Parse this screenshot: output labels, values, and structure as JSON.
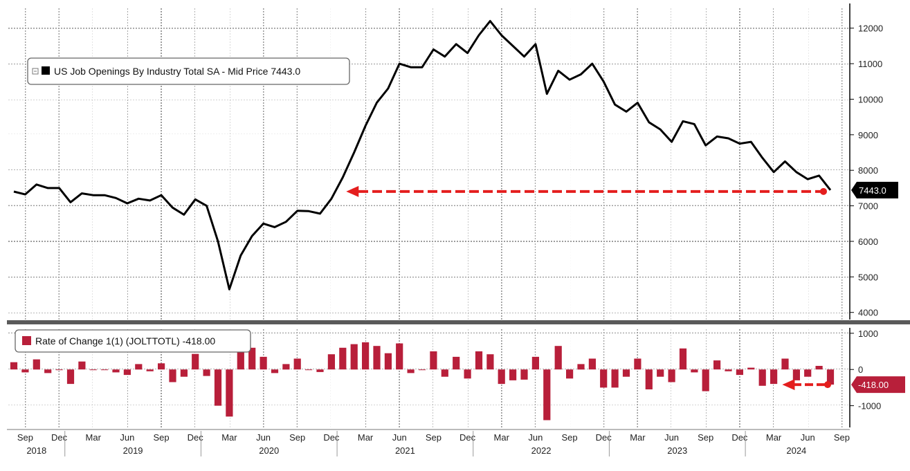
{
  "chart_data": [
    {
      "type": "line",
      "legend_label": "US Job Openings By Industry Total SA - Mid Price 7443.0",
      "series_color": "#000000",
      "last_value_label": "7443.0",
      "ylim": [
        3800,
        12500
      ],
      "yticks": [
        4000,
        5000,
        6000,
        7000,
        8000,
        9000,
        10000,
        11000,
        12000
      ],
      "annotation": "dashed red arrow from latest value back to Jan 2021 level",
      "annotation_color": "#e41e1e",
      "start": "2018-08",
      "values": [
        7400,
        7320,
        7600,
        7500,
        7500,
        7100,
        7350,
        7300,
        7300,
        7220,
        7070,
        7200,
        7150,
        7300,
        6950,
        6750,
        7180,
        7000,
        6000,
        4650,
        5600,
        6150,
        6500,
        6400,
        6550,
        6860,
        6850,
        6780,
        7200,
        7800,
        8500,
        9250,
        9900,
        10300,
        11000,
        10900,
        10900,
        11400,
        11200,
        11550,
        11300,
        11800,
        12200,
        11800,
        11500,
        11200,
        11550,
        10150,
        10800,
        10550,
        10700,
        11000,
        10500,
        9850,
        9650,
        9900,
        9350,
        9150,
        8800,
        9380,
        9300,
        8700,
        8950,
        8900,
        8750,
        8800,
        8350,
        7950,
        8250,
        7950,
        7750,
        7850,
        7443
      ]
    },
    {
      "type": "bar",
      "legend_label": "Rate of Change 1(1) (JOLTTOTL) -418.00",
      "series_color": "#b81f3a",
      "last_value_label": "-418.00",
      "ylim": [
        -1600,
        1150
      ],
      "yticks": [
        -1000,
        0,
        1000
      ],
      "annotation_color": "#e41e1e",
      "start": "2018-08",
      "values": [
        200,
        -80,
        280,
        -100,
        0,
        -400,
        220,
        -20,
        0,
        -80,
        -150,
        150,
        -50,
        170,
        -350,
        -200,
        430,
        -180,
        -1000,
        -1300,
        950,
        600,
        350,
        -100,
        150,
        300,
        0,
        -70,
        420,
        600,
        700,
        750,
        650,
        450,
        720,
        -100,
        0,
        500,
        -200,
        350,
        -250,
        500,
        420,
        -400,
        -300,
        -280,
        350,
        -1400,
        650,
        -250,
        150,
        300,
        -500,
        -500,
        -200,
        300,
        -550,
        -200,
        -350,
        580,
        -80,
        -600,
        250,
        -50,
        -150,
        50,
        -450,
        -400,
        300,
        -300,
        -200,
        100,
        -418
      ]
    }
  ],
  "x_axis": {
    "month_ticks": [
      {
        "label": "Sep",
        "date": "2018-09"
      },
      {
        "label": "Dec",
        "date": "2018-12"
      },
      {
        "label": "Mar",
        "date": "2019-03"
      },
      {
        "label": "Jun",
        "date": "2019-06"
      },
      {
        "label": "Sep",
        "date": "2019-09"
      },
      {
        "label": "Dec",
        "date": "2019-12"
      },
      {
        "label": "Mar",
        "date": "2020-03"
      },
      {
        "label": "Jun",
        "date": "2020-06"
      },
      {
        "label": "Sep",
        "date": "2020-09"
      },
      {
        "label": "Dec",
        "date": "2020-12"
      },
      {
        "label": "Mar",
        "date": "2021-03"
      },
      {
        "label": "Jun",
        "date": "2021-06"
      },
      {
        "label": "Sep",
        "date": "2021-09"
      },
      {
        "label": "Dec",
        "date": "2021-12"
      },
      {
        "label": "Mar",
        "date": "2022-03"
      },
      {
        "label": "Jun",
        "date": "2022-06"
      },
      {
        "label": "Sep",
        "date": "2022-09"
      },
      {
        "label": "Dec",
        "date": "2022-12"
      },
      {
        "label": "Mar",
        "date": "2023-03"
      },
      {
        "label": "Jun",
        "date": "2023-06"
      },
      {
        "label": "Sep",
        "date": "2023-09"
      },
      {
        "label": "Dec",
        "date": "2023-12"
      },
      {
        "label": "Mar",
        "date": "2024-03"
      },
      {
        "label": "Jun",
        "date": "2024-06"
      },
      {
        "label": "Sep",
        "date": "2024-09"
      }
    ],
    "years": [
      {
        "label": "2018",
        "start": "2018-08",
        "end": "2018-12"
      },
      {
        "label": "2019",
        "start": "2019-01",
        "end": "2019-12"
      },
      {
        "label": "2020",
        "start": "2020-01",
        "end": "2020-12"
      },
      {
        "label": "2021",
        "start": "2021-01",
        "end": "2021-12"
      },
      {
        "label": "2022",
        "start": "2022-01",
        "end": "2022-12"
      },
      {
        "label": "2023",
        "start": "2023-01",
        "end": "2023-12"
      },
      {
        "label": "2024",
        "start": "2024-01",
        "end": "2024-09"
      }
    ]
  },
  "grid": true,
  "legend_position": "top-left"
}
